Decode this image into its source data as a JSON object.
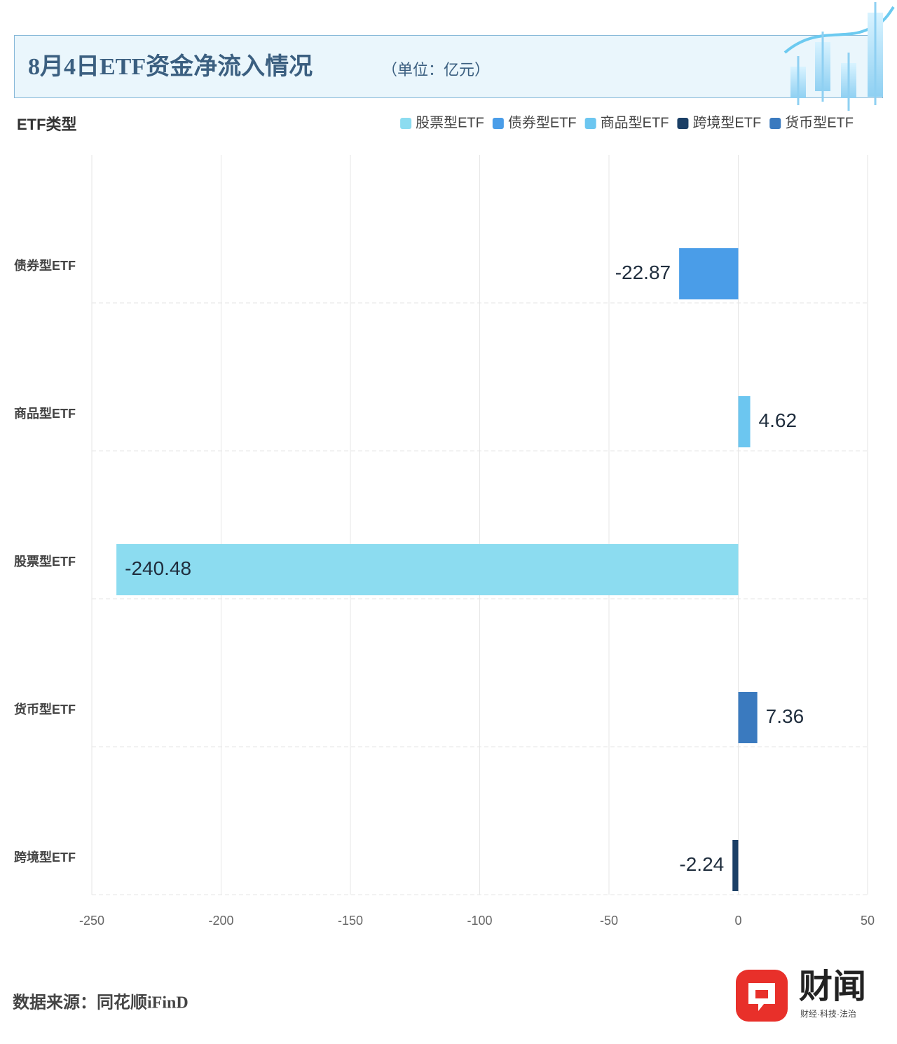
{
  "chart_data": {
    "type": "bar",
    "orientation": "horizontal",
    "title": "8月4日ETF资金净流入情况",
    "subtitle": "（单位：亿元）",
    "y_axis_label": "ETF类型",
    "categories": [
      "债券型ETF",
      "商品型ETF",
      "股票型ETF",
      "货币型ETF",
      "跨境型ETF"
    ],
    "series": [
      {
        "name": "股票型ETF",
        "color": "#8cdcf0",
        "values": [
          null,
          null,
          -240.48,
          null,
          null
        ]
      },
      {
        "name": "债券型ETF",
        "color": "#4a9de8",
        "values": [
          -22.87,
          null,
          null,
          null,
          null
        ]
      },
      {
        "name": "商品型ETF",
        "color": "#6cc6f0",
        "values": [
          null,
          4.62,
          null,
          null,
          null
        ]
      },
      {
        "name": "跨境型ETF",
        "color": "#1b3f66",
        "values": [
          null,
          null,
          null,
          null,
          -2.24
        ]
      },
      {
        "name": "货币型ETF",
        "color": "#3a7abf",
        "values": [
          null,
          null,
          null,
          7.36,
          null
        ]
      }
    ],
    "xlim": [
      -250,
      50
    ],
    "xticks": [
      -250,
      -200,
      -150,
      -100,
      -50,
      0,
      50
    ],
    "grid": true,
    "legend": "top-right",
    "source": "数据来源：同花顺iFinD",
    "brand": "财闻",
    "brand_tagline": "财经·科技·法治"
  }
}
